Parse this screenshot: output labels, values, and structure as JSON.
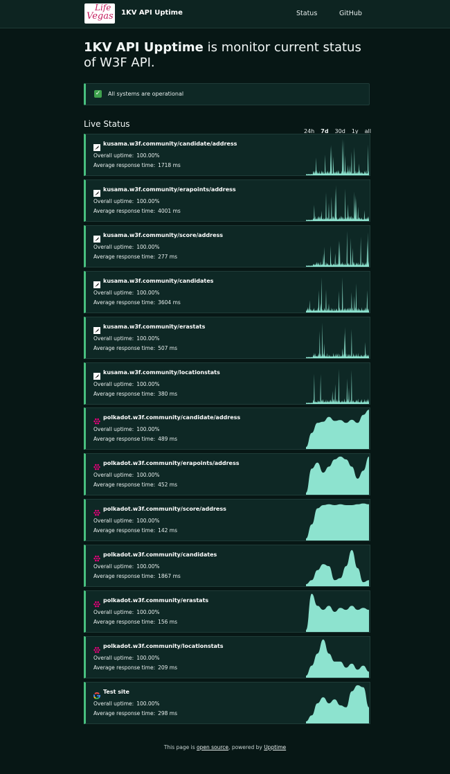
{
  "nav": {
    "logo_line1": "Life",
    "logo_line2": "Vegas",
    "brand": "1KV API Uptime",
    "links": [
      "Status",
      "GitHub"
    ]
  },
  "hero": {
    "bold": "1KV API Upptime",
    "rest": " is monitor current status of W3F API."
  },
  "banner": {
    "icon": "check-mark-icon",
    "text": "All systems are operational"
  },
  "live_status": {
    "title": "Live Status",
    "ranges": [
      "24h",
      "7d",
      "30d",
      "1y",
      "all"
    ],
    "active_range": "7d"
  },
  "labels": {
    "uptime": "Overall uptime:",
    "response": "Average response time:"
  },
  "colors": {
    "accent_green": "#48c07f",
    "chart_fill": "#8de3cf",
    "polkadot_pink": "#e6007a",
    "kusama_icon_bg": "#ffffff"
  },
  "sites": [
    {
      "url": "kusama.w3f.community/candidate/address",
      "uptime": "100.00%",
      "response": "1718 ms",
      "icon": "kusama-icon",
      "chart": "spiky",
      "seed": 3
    },
    {
      "url": "kusama.w3f.community/erapoints/address",
      "uptime": "100.00%",
      "response": "4001 ms",
      "icon": "kusama-icon",
      "chart": "spiky",
      "seed": 7
    },
    {
      "url": "kusama.w3f.community/score/address",
      "uptime": "100.00%",
      "response": "277 ms",
      "icon": "kusama-icon",
      "chart": "spiky",
      "seed": 11
    },
    {
      "url": "kusama.w3f.community/candidates",
      "uptime": "100.00%",
      "response": "3604 ms",
      "icon": "kusama-icon",
      "chart": "spiky",
      "seed": 19
    },
    {
      "url": "kusama.w3f.community/erastats",
      "uptime": "100.00%",
      "response": "507 ms",
      "icon": "kusama-icon",
      "chart": "spiky",
      "seed": 23
    },
    {
      "url": "kusama.w3f.community/locationstats",
      "uptime": "100.00%",
      "response": "380 ms",
      "icon": "kusama-icon",
      "chart": "spiky",
      "seed": 29
    },
    {
      "url": "polkadot.w3f.community/candidate/address",
      "uptime": "100.00%",
      "response": "489 ms",
      "icon": "polkadot-icon",
      "chart": "smooth",
      "shape": 1
    },
    {
      "url": "polkadot.w3f.community/erapoints/address",
      "uptime": "100.00%",
      "response": "452 ms",
      "icon": "polkadot-icon",
      "chart": "smooth",
      "shape": 2
    },
    {
      "url": "polkadot.w3f.community/score/address",
      "uptime": "100.00%",
      "response": "142 ms",
      "icon": "polkadot-icon",
      "chart": "smooth",
      "shape": 3
    },
    {
      "url": "polkadot.w3f.community/candidates",
      "uptime": "100.00%",
      "response": "1867 ms",
      "icon": "polkadot-icon",
      "chart": "smooth",
      "shape": 4
    },
    {
      "url": "polkadot.w3f.community/erastats",
      "uptime": "100.00%",
      "response": "156 ms",
      "icon": "polkadot-icon",
      "chart": "smooth",
      "shape": 5
    },
    {
      "url": "polkadot.w3f.community/locationstats",
      "uptime": "100.00%",
      "response": "209 ms",
      "icon": "polkadot-icon",
      "chart": "smooth",
      "shape": 6
    },
    {
      "url": "Test site",
      "uptime": "100.00%",
      "response": "298 ms",
      "icon": "google-icon",
      "chart": "smooth",
      "shape": 7
    }
  ],
  "footer": {
    "prefix": "This page is ",
    "link1": "open source",
    "middle": ", powered by ",
    "link2": "Upptime"
  }
}
